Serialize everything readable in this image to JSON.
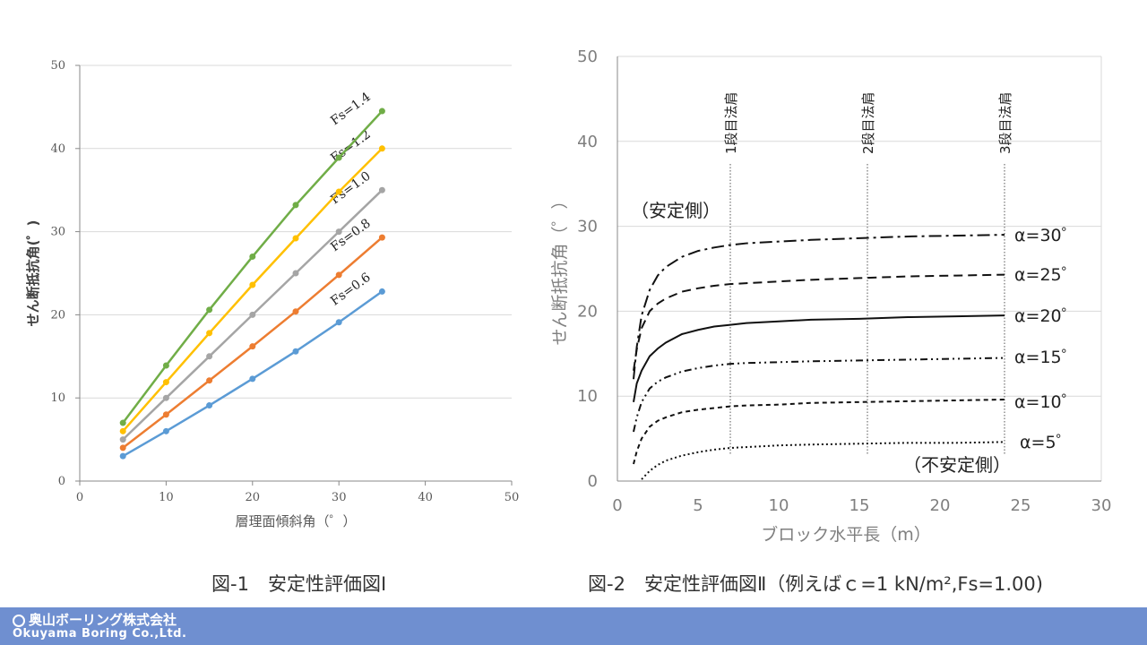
{
  "captions": {
    "fig1": "図-1　安定性評価図Ⅰ",
    "fig2": "図-2　安定性評価図Ⅱ（例えばｃ=1 kN/m²,Fs=1.00)"
  },
  "footer": {
    "company_jp": "奥山ボーリング株式会社",
    "company_en": "Okuyama Boring Co.,Ltd."
  },
  "colors": {
    "footer_bg": "#6f8fd0",
    "fs_0_6": "#5b9bd5",
    "fs_0_8": "#ed7d31",
    "fs_1_0": "#a5a5a5",
    "fs_1_2": "#ffc000",
    "fs_1_4": "#70ad47"
  },
  "chart_data": [
    {
      "type": "line",
      "xlabel": "層理面傾斜角（゜）",
      "ylabel": "せん断抵抗角(゜)",
      "xlim": [
        0,
        50
      ],
      "ylim": [
        0,
        50
      ],
      "xticks": [
        0,
        10,
        20,
        30,
        40,
        50
      ],
      "yticks": [
        0,
        10,
        20,
        30,
        40,
        50
      ],
      "grid": "horizontal",
      "x": [
        5,
        10,
        15,
        20,
        25,
        30,
        35
      ],
      "series": [
        {
          "name": "Fs=0.6",
          "color": "#5b9bd5",
          "values": [
            3.0,
            6.0,
            9.1,
            12.3,
            15.6,
            19.1,
            22.8
          ]
        },
        {
          "name": "Fs=0.8",
          "color": "#ed7d31",
          "values": [
            4.0,
            8.0,
            12.1,
            16.2,
            20.4,
            24.8,
            29.3
          ]
        },
        {
          "name": "Fs=1.0",
          "color": "#a5a5a5",
          "values": [
            5.0,
            10.0,
            15.0,
            20.0,
            25.0,
            30.0,
            35.0
          ]
        },
        {
          "name": "Fs=1.2",
          "color": "#ffc000",
          "values": [
            6.0,
            11.9,
            17.8,
            23.6,
            29.2,
            34.8,
            40.0
          ]
        },
        {
          "name": "Fs=1.4",
          "color": "#70ad47",
          "values": [
            7.0,
            13.9,
            20.6,
            27.0,
            33.2,
            38.9,
            44.5
          ]
        }
      ]
    },
    {
      "type": "line",
      "xlabel": "ブロック水平長（m）",
      "ylabel": "せん断抵抗角（゜）",
      "xlim": [
        0,
        30
      ],
      "ylim": [
        0,
        50
      ],
      "xticks": [
        0,
        5,
        10,
        15,
        20,
        25,
        30
      ],
      "yticks": [
        0,
        10,
        20,
        30,
        40,
        50
      ],
      "grid": "horizontal",
      "annotations": {
        "stable": "（安定側）",
        "unstable": "（不安定側）"
      },
      "vlines": [
        {
          "x": 7,
          "label": "1段目法肩"
        },
        {
          "x": 15.5,
          "label": "2段目法肩"
        },
        {
          "x": 24,
          "label": "3段目法肩"
        }
      ],
      "series": [
        {
          "name": "α=30゜",
          "dash": "dashdot-long",
          "x": [
            1,
            1.2,
            1.5,
            2,
            2.5,
            3,
            4,
            5,
            6,
            7,
            8,
            10,
            12,
            15,
            18,
            21,
            24
          ],
          "values": [
            12.0,
            15.8,
            19.5,
            22.5,
            24.2,
            25.2,
            26.4,
            27.1,
            27.5,
            27.8,
            28.0,
            28.2,
            28.4,
            28.6,
            28.8,
            28.9,
            29.0
          ]
        },
        {
          "name": "α=25゜",
          "dash": "dash",
          "x": [
            1,
            1.2,
            1.5,
            2,
            2.5,
            3,
            4,
            5,
            6,
            7,
            8,
            10,
            12,
            15,
            18,
            21,
            24
          ],
          "values": [
            13.0,
            15.5,
            18.0,
            20.0,
            20.9,
            21.5,
            22.3,
            22.7,
            23.0,
            23.2,
            23.3,
            23.5,
            23.7,
            23.9,
            24.1,
            24.2,
            24.3
          ]
        },
        {
          "name": "α=20゜",
          "dash": "solid",
          "x": [
            1,
            1.2,
            1.5,
            2,
            2.5,
            3,
            4,
            5,
            6,
            7,
            8,
            10,
            12,
            15,
            18,
            21,
            24
          ],
          "values": [
            9.3,
            11.5,
            13.0,
            14.7,
            15.6,
            16.3,
            17.3,
            17.8,
            18.2,
            18.4,
            18.6,
            18.8,
            19.0,
            19.1,
            19.3,
            19.4,
            19.5
          ]
        },
        {
          "name": "α=15゜",
          "dash": "dashdotdot",
          "x": [
            1,
            1.2,
            1.5,
            2,
            2.5,
            3,
            4,
            5,
            6,
            7,
            8,
            10,
            12,
            15,
            18,
            21,
            24
          ],
          "values": [
            5.8,
            7.5,
            9.3,
            10.9,
            11.7,
            12.2,
            12.9,
            13.3,
            13.6,
            13.8,
            13.9,
            14.0,
            14.1,
            14.2,
            14.3,
            14.4,
            14.5
          ]
        },
        {
          "name": "α=10゜",
          "dash": "short-dash",
          "x": [
            1,
            1.2,
            1.5,
            2,
            2.5,
            3,
            4,
            5,
            6,
            7,
            8,
            10,
            12,
            15,
            18,
            21,
            24
          ],
          "values": [
            2.0,
            3.5,
            5.0,
            6.4,
            7.1,
            7.5,
            8.1,
            8.4,
            8.6,
            8.8,
            8.9,
            9.0,
            9.2,
            9.3,
            9.4,
            9.5,
            9.6
          ]
        },
        {
          "name": "α=5゜",
          "dash": "dot",
          "x": [
            1.5,
            2,
            2.5,
            3,
            4,
            5,
            6,
            7,
            8,
            10,
            12,
            15,
            18,
            21,
            24
          ],
          "values": [
            0.2,
            1.2,
            1.9,
            2.4,
            3.0,
            3.4,
            3.7,
            3.9,
            4.0,
            4.2,
            4.3,
            4.4,
            4.5,
            4.5,
            4.6
          ]
        }
      ]
    }
  ]
}
